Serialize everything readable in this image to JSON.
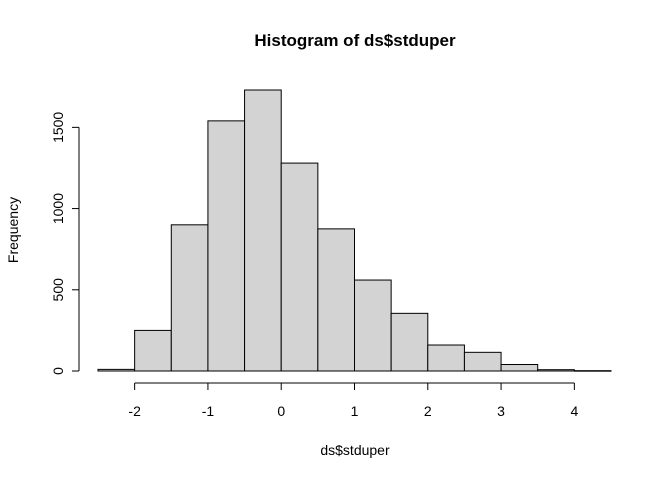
{
  "chart_data": {
    "type": "bar",
    "title": "Histogram of ds$stduper",
    "xlabel": "ds$stduper",
    "ylabel": "Frequency",
    "bins": [
      {
        "x0": -2.5,
        "x1": -2.0,
        "count": 10
      },
      {
        "x0": -2.0,
        "x1": -1.5,
        "count": 250
      },
      {
        "x0": -1.5,
        "x1": -1.0,
        "count": 900
      },
      {
        "x0": -1.0,
        "x1": -0.5,
        "count": 1540
      },
      {
        "x0": -0.5,
        "x1": 0.0,
        "count": 1730
      },
      {
        "x0": 0.0,
        "x1": 0.5,
        "count": 1280
      },
      {
        "x0": 0.5,
        "x1": 1.0,
        "count": 875
      },
      {
        "x0": 1.0,
        "x1": 1.5,
        "count": 560
      },
      {
        "x0": 1.5,
        "x1": 2.0,
        "count": 355
      },
      {
        "x0": 2.0,
        "x1": 2.5,
        "count": 160
      },
      {
        "x0": 2.5,
        "x1": 3.0,
        "count": 115
      },
      {
        "x0": 3.0,
        "x1": 3.5,
        "count": 40
      },
      {
        "x0": 3.5,
        "x1": 4.0,
        "count": 8
      },
      {
        "x0": 4.0,
        "x1": 4.5,
        "count": 2
      }
    ],
    "x_ticks": [
      -2,
      -1,
      0,
      1,
      2,
      3,
      4
    ],
    "x_tick_labels": [
      "-2",
      "-1",
      "0",
      "1",
      "2",
      "3",
      "4"
    ],
    "y_ticks": [
      0,
      500,
      1000,
      1500
    ],
    "y_tick_labels": [
      "0",
      "500",
      "1000",
      "1500"
    ],
    "xlim": [
      -2.5,
      4.5
    ],
    "ylim": [
      0,
      1730
    ],
    "grid": false,
    "colors": {
      "bar_fill": "#d3d3d3",
      "bar_stroke": "#000000"
    }
  }
}
